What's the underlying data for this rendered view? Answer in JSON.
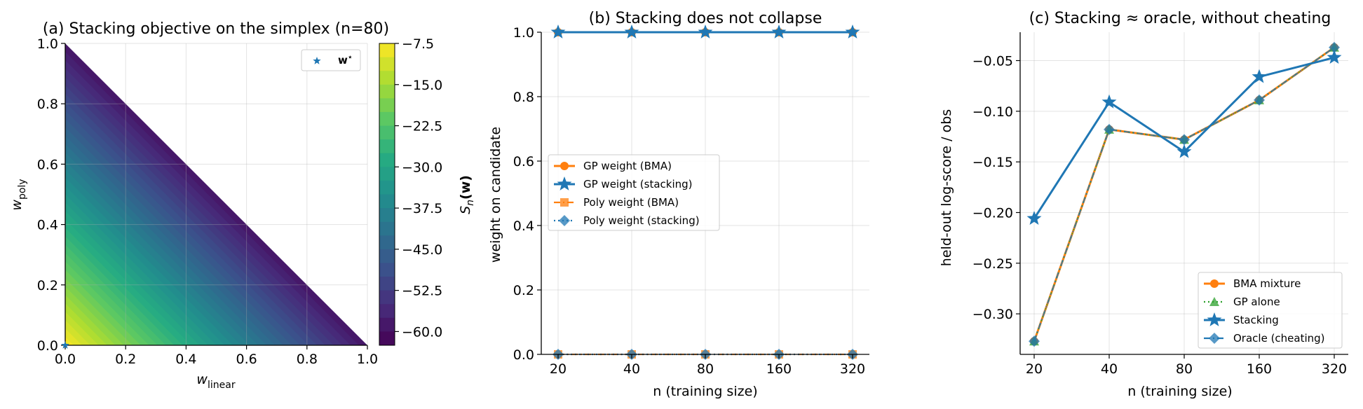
{
  "chart_data": [
    {
      "type": "heatmap",
      "title": "(a) Stacking objective on the simplex (n=80)",
      "xlabel": "w",
      "xlabel_sub": "linear",
      "ylabel": "w",
      "ylabel_sub": "poly",
      "xlim": [
        0,
        1
      ],
      "ylim": [
        0,
        1
      ],
      "xticks": [
        "0.0",
        "0.2",
        "0.4",
        "0.6",
        "0.8",
        "1.0"
      ],
      "yticks": [
        "0.0",
        "0.2",
        "0.4",
        "0.6",
        "0.8",
        "1.0"
      ],
      "grid": true,
      "colorbar": {
        "label": "S",
        "label_sub": "n",
        "label_arg": "(w)",
        "range": [
          -62.5,
          -7.5
        ],
        "ticks": [
          "−7.5",
          "−15.0",
          "−22.5",
          "−30.0",
          "−37.5",
          "−45.0",
          "−52.5",
          "−60.0"
        ],
        "tick_values": [
          -7.5,
          -15.0,
          -22.5,
          -30.0,
          -37.5,
          -45.0,
          -52.5,
          -60.0
        ]
      },
      "region": "simplex w_linear + w_poly <= 1; objective highest (~ -7.5) near origin, decreasing to ~ -62 along the edge w_linear + w_poly = 1",
      "optimum": {
        "w_linear": 0.0,
        "w_poly": 0.0
      },
      "legend": {
        "position": "upper right",
        "entries": [
          "w*"
        ],
        "marker_label": "w",
        "marker_sup": "⋆"
      }
    },
    {
      "type": "line",
      "title": "(b) Stacking does not collapse",
      "xlabel": "n (training size)",
      "ylabel": "weight on candidate",
      "x": [
        20,
        40,
        80,
        160,
        320
      ],
      "xscale": "log2",
      "ylim": [
        0,
        1
      ],
      "yticks": [
        "0.0",
        "0.2",
        "0.4",
        "0.6",
        "0.8",
        "1.0"
      ],
      "grid": true,
      "legend_position": "center left",
      "series": [
        {
          "name": "GP weight (BMA)",
          "values": [
            1.0,
            1.0,
            1.0,
            1.0,
            1.0
          ],
          "color": "#ff7f0e",
          "marker": "circle",
          "linestyle": "solid"
        },
        {
          "name": "GP weight (stacking)",
          "values": [
            1.0,
            1.0,
            1.0,
            1.0,
            1.0
          ],
          "color": "#1f77b4",
          "marker": "star",
          "linestyle": "solid"
        },
        {
          "name": "Poly weight (BMA)",
          "values": [
            0.0,
            0.0,
            0.0,
            0.0,
            0.0
          ],
          "color": "#ff7f0e",
          "marker": "square",
          "linestyle": "dashdot"
        },
        {
          "name": "Poly weight (stacking)",
          "values": [
            0.0,
            0.0,
            0.0,
            0.0,
            0.0
          ],
          "color": "#1f77b4",
          "marker": "diamond",
          "linestyle": "dotted"
        }
      ]
    },
    {
      "type": "line",
      "title": "(c) Stacking ≈ oracle, without cheating",
      "xlabel": "n (training size)",
      "ylabel": "held-out log-score / obs",
      "x": [
        20,
        40,
        80,
        160,
        320
      ],
      "xscale": "log2",
      "ylim": [
        -0.34,
        -0.022
      ],
      "yticks": [
        "−0.05",
        "−0.10",
        "−0.15",
        "−0.20",
        "−0.25",
        "−0.30"
      ],
      "ytick_values": [
        -0.05,
        -0.1,
        -0.15,
        -0.2,
        -0.25,
        -0.3
      ],
      "grid": true,
      "legend_position": "lower right",
      "series": [
        {
          "name": "BMA mixture",
          "values": [
            -0.327,
            -0.118,
            -0.128,
            -0.089,
            -0.037
          ],
          "color": "#ff7f0e",
          "marker": "circle",
          "linestyle": "solid"
        },
        {
          "name": "GP alone",
          "values": [
            -0.327,
            -0.118,
            -0.128,
            -0.089,
            -0.037
          ],
          "color": "#2ca02c",
          "marker": "triangle",
          "linestyle": "dotted"
        },
        {
          "name": "Stacking",
          "values": [
            -0.206,
            -0.091,
            -0.14,
            -0.066,
            -0.047
          ],
          "color": "#1f77b4",
          "marker": "star",
          "linestyle": "solid"
        },
        {
          "name": "Oracle (cheating)",
          "values": [
            -0.327,
            -0.118,
            -0.128,
            -0.089,
            -0.037
          ],
          "color": "#1f77b4",
          "marker": "diamond",
          "linestyle": "dashdot"
        }
      ]
    }
  ]
}
